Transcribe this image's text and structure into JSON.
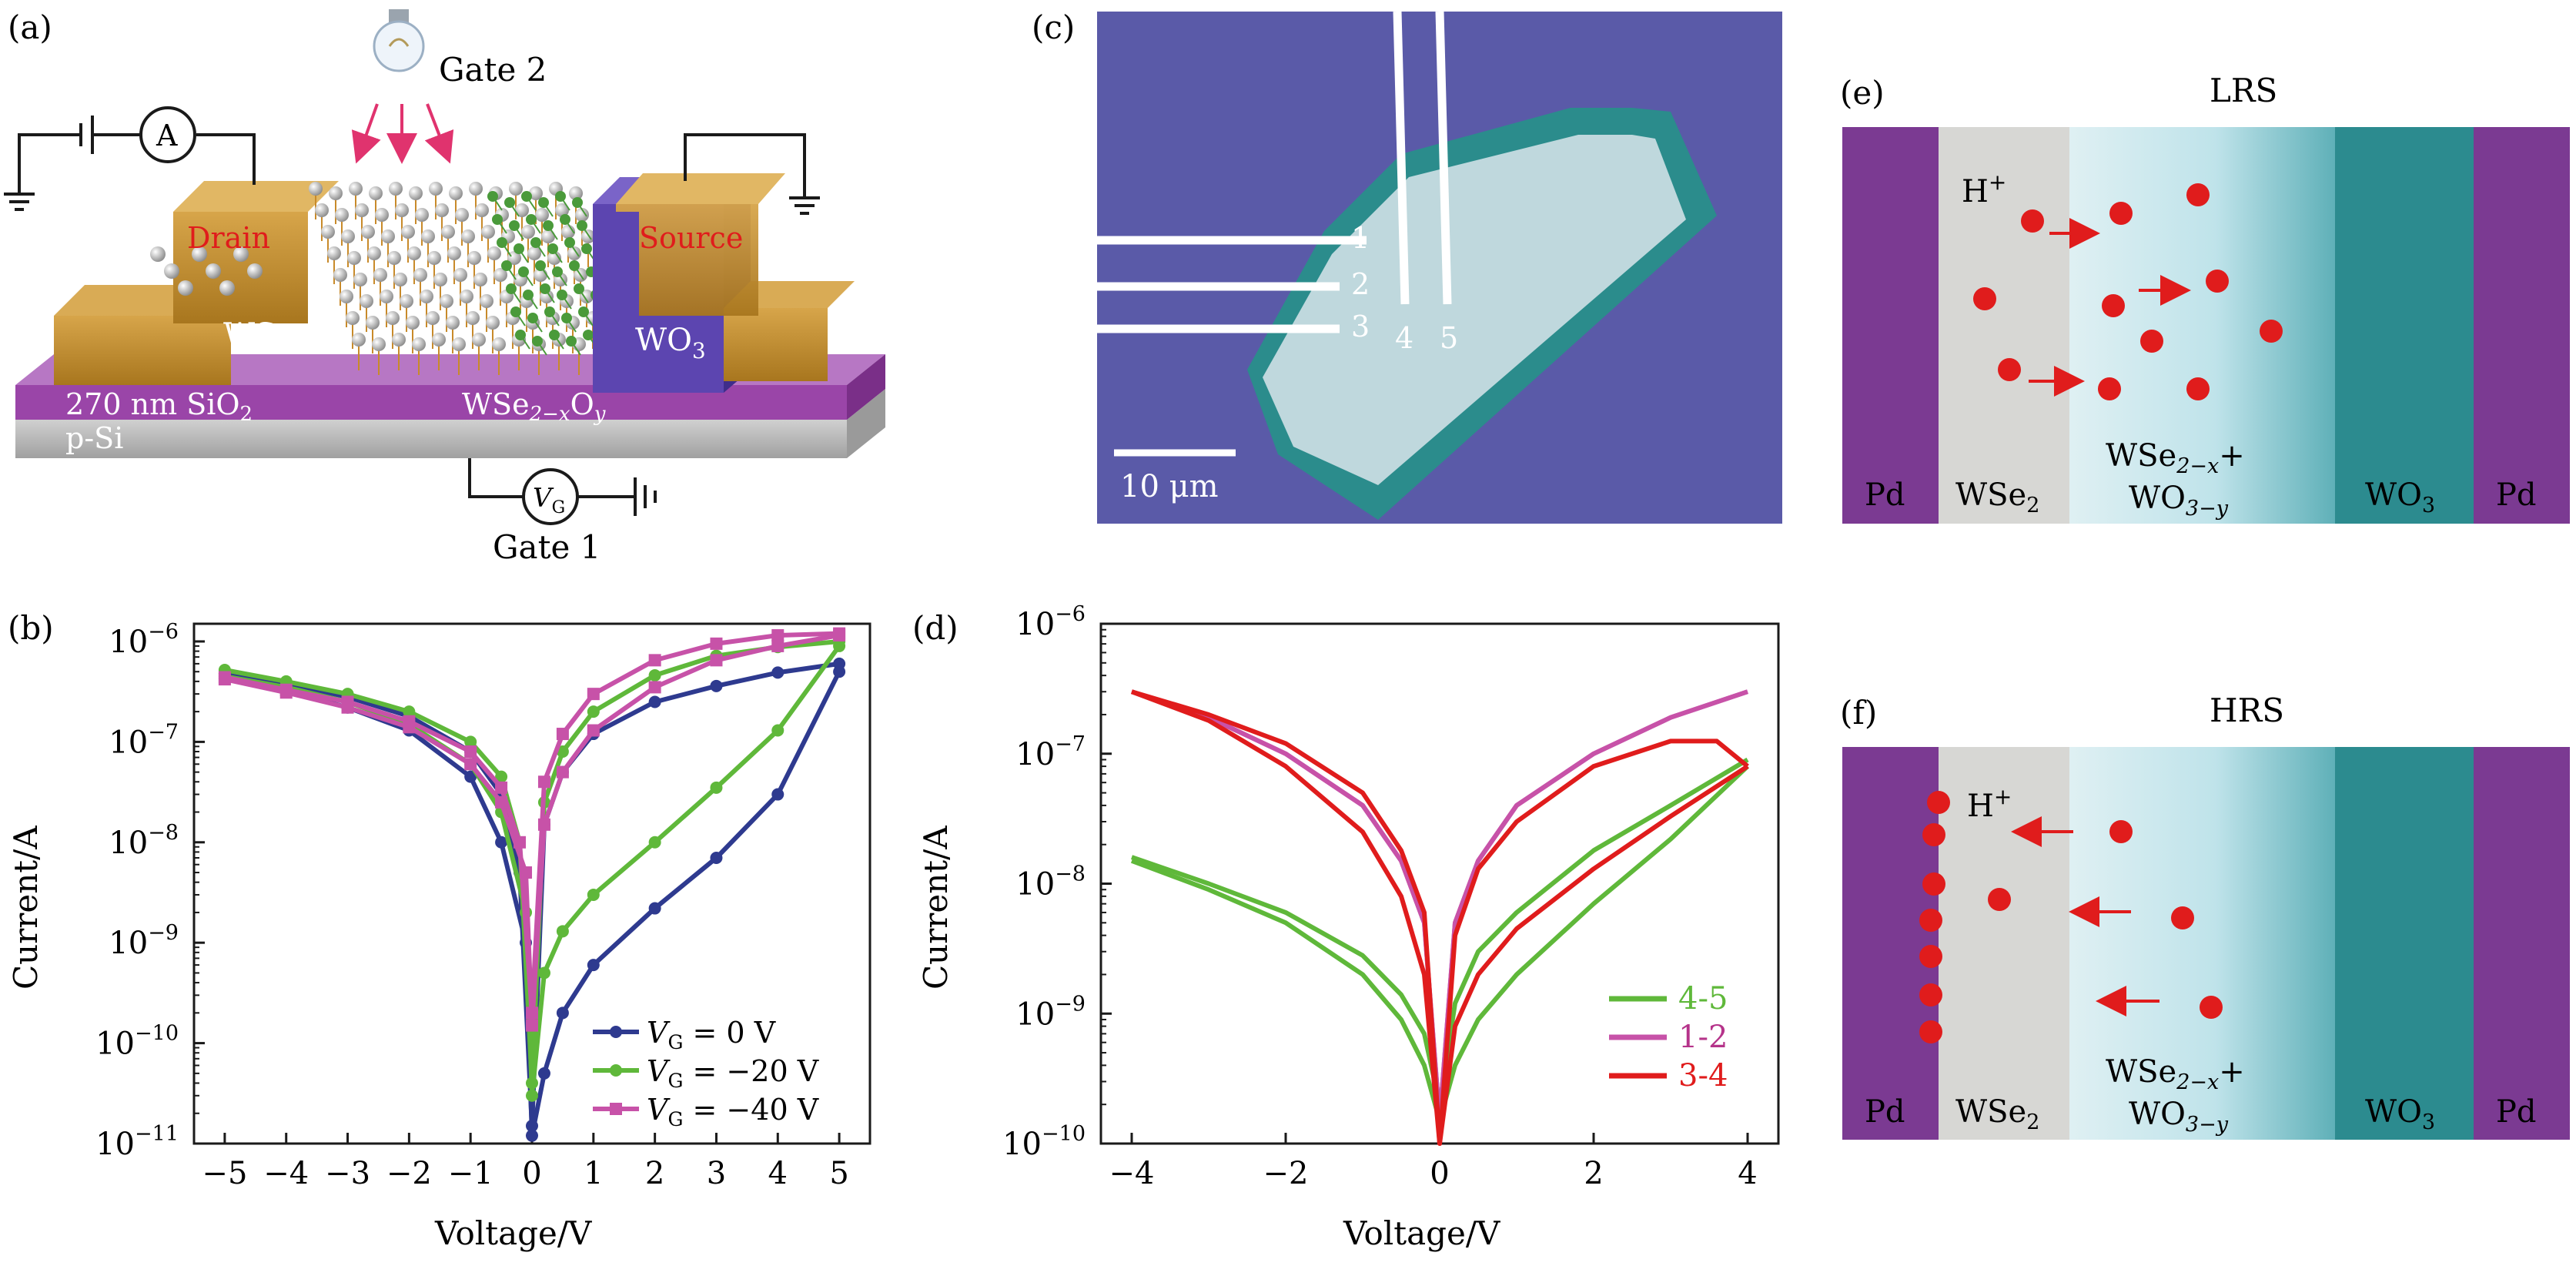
{
  "panels": {
    "a": {
      "label": "(a)",
      "gate2": "Gate 2",
      "gate1": "Gate 1",
      "ammeter": "A",
      "vg_symbol": "V",
      "vg_sub": "G",
      "drain": "Drain",
      "source": "Source",
      "wse": "WSe",
      "wo3_main": "WO",
      "wo3_sub": "3",
      "sio2_main": "270 nm SiO",
      "sio2_sub": "2",
      "psi": "p-Si",
      "wseo_main": "WSe",
      "wseo_sub": "2−x",
      "wseo_mid": "O",
      "wseo_sub2": "y"
    },
    "b": {
      "label": "(b)",
      "xlabel": "Voltage/V",
      "ylabel": "Current/A",
      "legend": [
        {
          "prefix": "V",
          "sub": "G",
          "text": " = 0 V"
        },
        {
          "prefix": "V",
          "sub": "G",
          "text": " = −20 V"
        },
        {
          "prefix": "V",
          "sub": "G",
          "text": " = −40 V"
        }
      ]
    },
    "c": {
      "label": "(c)",
      "pads": [
        "1",
        "2",
        "3",
        "4",
        "5"
      ],
      "scalebar": "10 μm"
    },
    "d": {
      "label": "(d)",
      "xlabel": "Voltage/V",
      "ylabel": "Current/A"
    },
    "e": {
      "label": "(e)",
      "title": "LRS",
      "ion_main": "H",
      "ion_sup": "+",
      "layers": [
        "Pd",
        "WSe",
        "WSe",
        "WO",
        "Pd"
      ],
      "layer_subs": [
        "",
        "2",
        "2−x",
        "3",
        ""
      ],
      "mix_line1_plus": "+",
      "mix_line2_main": "WO",
      "mix_line2_sub": "3−y"
    },
    "f": {
      "label": "(f)",
      "title": "HRS",
      "ion_main": "H",
      "ion_sup": "+",
      "layers": [
        "Pd",
        "WSe",
        "WSe",
        "WO",
        "Pd"
      ],
      "layer_subs": [
        "",
        "2",
        "2−x",
        "3",
        ""
      ],
      "mix_line1_plus": "+",
      "mix_line2_main": "WO",
      "mix_line2_sub": "3−y"
    }
  },
  "colors": {
    "blue": "#2e3a8f",
    "green": "#5fb83a",
    "magenta": "#c752a8",
    "red": "#e01c1c",
    "pink_legend": "#b5338a",
    "purple_pd": "#7b3a92",
    "teal_wo3": "#2c8b8f",
    "gray_wse2": "#d7d7d4",
    "gold": "#b8862c"
  },
  "chart_data": [
    {
      "type": "line",
      "panel": "b",
      "xlabel": "Voltage/V",
      "ylabel": "Current/A",
      "xlim": [
        -5.5,
        5.5
      ],
      "ylim": [
        1e-11,
        1.5e-06
      ],
      "yscale": "log",
      "xticks": [
        "−5",
        "−4",
        "−3",
        "−2",
        "−1",
        "0",
        "1",
        "2",
        "3",
        "4",
        "5"
      ],
      "yticks": [
        "10^−11",
        "10^−10",
        "10^−9",
        "10^−8",
        "10^−7",
        "10^−6"
      ],
      "legend_position": "lower-right",
      "series": [
        {
          "name": "VG = 0 V",
          "color": "#2e3a8f",
          "marker": "circle",
          "upper": {
            "x": [
              -5,
              -4,
              -3,
              -2,
              -1,
              -0.5,
              -0.2,
              0,
              0.2,
              0.5,
              1,
              2,
              3,
              4,
              5
            ],
            "y": [
              4.8e-07,
              3.8e-07,
              2.8e-07,
              1.8e-07,
              8e-08,
              3e-08,
              5e-09,
              1.5e-11,
              1.5e-08,
              5e-08,
              1.2e-07,
              2.5e-07,
              3.6e-07,
              4.9e-07,
              6e-07
            ]
          },
          "lower": {
            "x": [
              -5,
              -4,
              -3,
              -2,
              -1,
              -0.5,
              -0.1,
              0,
              0.2,
              0.5,
              1,
              2,
              3,
              4,
              5
            ],
            "y": [
              4.3e-07,
              3.2e-07,
              2.2e-07,
              1.3e-07,
              4.5e-08,
              1e-08,
              1e-09,
              1.2e-11,
              5e-11,
              2e-10,
              6e-10,
              2.2e-09,
              7e-09,
              3e-08,
              5e-07
            ]
          }
        },
        {
          "name": "VG = −20 V",
          "color": "#5fb83a",
          "marker": "circle",
          "upper": {
            "x": [
              -5,
              -4,
              -3,
              -2,
              -1,
              -0.5,
              -0.2,
              0,
              0.2,
              0.5,
              1,
              2,
              3,
              4,
              5
            ],
            "y": [
              5.2e-07,
              4e-07,
              3e-07,
              2e-07,
              1e-07,
              4.5e-08,
              1e-08,
              4e-11,
              2.5e-08,
              8e-08,
              2e-07,
              4.6e-07,
              7.2e-07,
              8.8e-07,
              1e-06
            ]
          },
          "lower": {
            "x": [
              -5,
              -4,
              -3,
              -2,
              -1,
              -0.5,
              -0.1,
              0,
              0.2,
              0.5,
              1,
              2,
              3,
              4,
              5
            ],
            "y": [
              4.5e-07,
              3.5e-07,
              2.5e-07,
              1.5e-07,
              6e-08,
              2e-08,
              2e-09,
              3e-11,
              5e-10,
              1.3e-09,
              3e-09,
              1e-08,
              3.5e-08,
              1.3e-07,
              9e-07
            ]
          }
        },
        {
          "name": "VG = −40 V",
          "color": "#c752a8",
          "marker": "square",
          "upper": {
            "x": [
              -5,
              -4,
              -3,
              -2,
              -1,
              -0.5,
              -0.2,
              0,
              0.2,
              0.5,
              1,
              2,
              3,
              4,
              5
            ],
            "y": [
              4.4e-07,
              3.3e-07,
              2.5e-07,
              1.6e-07,
              8e-08,
              3.5e-08,
              1e-08,
              2e-10,
              4e-08,
              1.2e-07,
              3e-07,
              6.5e-07,
              9.5e-07,
              1.15e-06,
              1.2e-06
            ]
          },
          "lower": {
            "x": [
              -5,
              -4,
              -3,
              -2,
              -1,
              -0.5,
              -0.1,
              0,
              0.2,
              0.5,
              1,
              2,
              3,
              4,
              5
            ],
            "y": [
              4.2e-07,
              3.1e-07,
              2.2e-07,
              1.4e-07,
              6e-08,
              2.5e-08,
              5e-09,
              1.5e-10,
              1.5e-08,
              5e-08,
              1.3e-07,
              3.5e-07,
              6.5e-07,
              9e-07,
              1.15e-06
            ]
          }
        }
      ]
    },
    {
      "type": "line",
      "panel": "d",
      "xlabel": "Voltage/V",
      "ylabel": "Current/A",
      "xlim": [
        -4.4,
        4.4
      ],
      "ylim": [
        1e-10,
        1e-06
      ],
      "yscale": "log",
      "xticks": [
        "−4",
        "−2",
        "0",
        "2",
        "4"
      ],
      "yticks": [
        "10^−10",
        "10^−9",
        "10^−8",
        "10^−7",
        "10^−6"
      ],
      "legend_position": "lower-right",
      "series": [
        {
          "name": "4-5",
          "color": "#5fb83a",
          "upper": {
            "x": [
              -4,
              -3,
              -2,
              -1,
              -0.5,
              -0.2,
              0,
              0.2,
              0.5,
              1,
              2,
              3,
              4
            ],
            "y": [
              1.6e-08,
              1e-08,
              6e-09,
              2.8e-09,
              1.4e-09,
              7e-10,
              2e-10,
              1.2e-09,
              3e-09,
              6e-09,
              1.8e-08,
              4e-08,
              9e-08
            ]
          },
          "lower": {
            "x": [
              -4,
              -3,
              -2,
              -1,
              -0.5,
              -0.2,
              0,
              0.2,
              0.5,
              1,
              2,
              3,
              4
            ],
            "y": [
              1.5e-08,
              9e-09,
              5e-09,
              2e-09,
              9e-10,
              4e-10,
              1.5e-10,
              4e-10,
              9e-10,
              2e-09,
              7e-09,
              2.2e-08,
              8e-08
            ]
          }
        },
        {
          "name": "1-2",
          "color": "#c752a8",
          "upper": {
            "x": [
              -4,
              -3,
              -2,
              -1,
              -0.5,
              -0.2,
              0,
              0.2,
              0.5,
              1,
              2,
              3,
              4
            ],
            "y": [
              3e-07,
              1.9e-07,
              1e-07,
              4e-08,
              1.5e-08,
              5e-09,
              1.5e-10,
              5e-09,
              1.5e-08,
              4e-08,
              1e-07,
              1.9e-07,
              3e-07
            ]
          },
          "lower": {
            "x": [
              -4,
              -3,
              -2,
              -1,
              -0.5,
              -0.2,
              0,
              0.2,
              0.5,
              1,
              2,
              3,
              4
            ],
            "y": [
              3e-07,
              1.9e-07,
              1e-07,
              4e-08,
              1.5e-08,
              5e-09,
              1.5e-10,
              5e-09,
              1.5e-08,
              4e-08,
              1e-07,
              1.9e-07,
              3e-07
            ]
          }
        },
        {
          "name": "3-4",
          "color": "#e01c1c",
          "upper": {
            "x": [
              -4,
              -3,
              -2,
              -1,
              -0.5,
              -0.2,
              0,
              0.2,
              0.5,
              1,
              2,
              3,
              3.6,
              4
            ],
            "y": [
              3e-07,
              2e-07,
              1.2e-07,
              5e-08,
              1.8e-08,
              6e-09,
              1e-10,
              4e-09,
              1.3e-08,
              3e-08,
              8e-08,
              1.25e-07,
              1.25e-07,
              8e-08
            ]
          },
          "lower": {
            "x": [
              -4,
              -3,
              -2,
              -1,
              -0.5,
              -0.2,
              0,
              0.2,
              0.5,
              1,
              2,
              3,
              4
            ],
            "y": [
              3e-07,
              1.8e-07,
              8e-08,
              2.5e-08,
              8e-09,
              2e-09,
              1e-10,
              8e-10,
              2e-09,
              4.5e-09,
              1.3e-08,
              3.3e-08,
              8e-08
            ]
          }
        }
      ]
    }
  ]
}
